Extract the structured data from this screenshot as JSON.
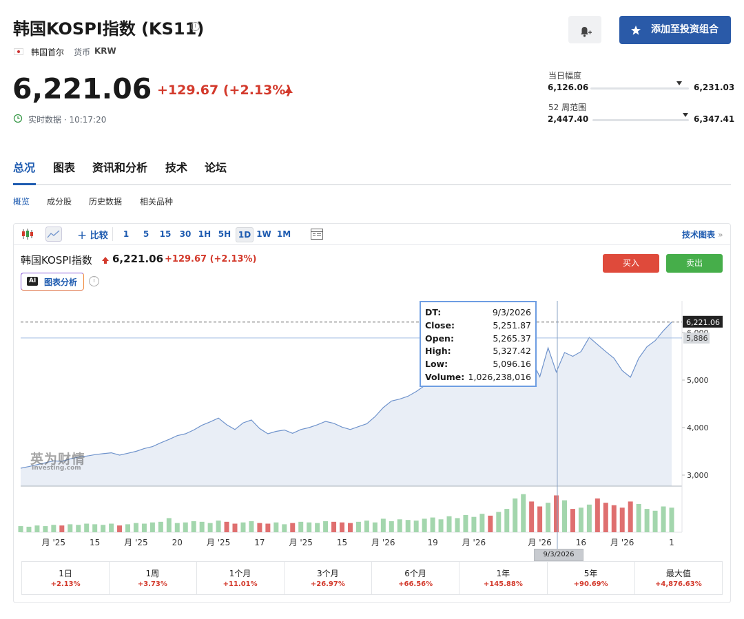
{
  "header": {
    "title": "韩国KOSPI指数 (KS11)",
    "location": "韩国首尔",
    "currency_label": "货币",
    "currency": "KRW",
    "price": {
      "value": 6221.06,
      "label": "6,221.06"
    },
    "change": "+129.67",
    "change_percent": "(+2.13%)",
    "status": "实时数据 · 10:17:20",
    "portfolio_button": "添加至投资组合"
  },
  "ranges": [
    {
      "title": "当日幅度",
      "low": {
        "value": 6126.06,
        "label": "6,126.06"
      },
      "high": {
        "value": 6231.03,
        "label": "6,231.03"
      }
    },
    {
      "title": "52 周范围",
      "low": {
        "value": 2447.4,
        "label": "2,447.40"
      },
      "high": {
        "value": 6347.41,
        "label": "6,347.41"
      }
    }
  ],
  "tabs": [
    "总况",
    "图表",
    "资讯和分析",
    "技术",
    "论坛"
  ],
  "subtabs": [
    "概览",
    "成分股",
    "历史数据",
    "相关品种"
  ],
  "toolbar": {
    "compare": "比较",
    "intervals": [
      "1",
      "5",
      "15",
      "30",
      "1H",
      "5H",
      "1D",
      "1W",
      "1M"
    ],
    "technical": "技术图表"
  },
  "panel": {
    "name": "韩国KOSPI指数",
    "price": "6,221.06",
    "change": "+129.67",
    "change_percent": "(+2.13%)",
    "buy": "买入",
    "sell": "卖出",
    "ai_badge": "AI",
    "ai_label": "图表分析",
    "watermark": "英为财情",
    "watermark_sub": "Investing.com"
  },
  "tooltip": {
    "rows": [
      {
        "label": "DT:",
        "value": "9/3/2026"
      },
      {
        "label": "Close:",
        "value": "5,251.87"
      },
      {
        "label": "Open:",
        "value": "5,265.37"
      },
      {
        "label": "High:",
        "value": "5,327.42"
      },
      {
        "label": "Low:",
        "value": "5,096.16"
      },
      {
        "label": "Volume:",
        "value": "1,026,238,016"
      }
    ],
    "crosshair_label": "9/3/2026"
  },
  "chart_data": {
    "type": "line",
    "color": "#6f93cc",
    "area_color": "#e9eef6",
    "up_color": "#a3d6ad",
    "down_color": "#df6f6f",
    "categories": [
      null,
      null,
      null,
      null,
      "月 '25",
      null,
      null,
      null,
      null,
      "15",
      null,
      null,
      null,
      null,
      "月 '25",
      null,
      null,
      null,
      null,
      "20",
      null,
      null,
      null,
      null,
      "月 '25",
      null,
      null,
      null,
      null,
      "17",
      null,
      null,
      null,
      null,
      "月 '25",
      null,
      null,
      null,
      null,
      "15",
      null,
      null,
      null,
      null,
      "月 '26",
      null,
      null,
      null,
      null,
      null,
      "19",
      null,
      null,
      null,
      null,
      "月 '26",
      null,
      null,
      null,
      null,
      null,
      null,
      null,
      "月 '26",
      null,
      null,
      null,
      null,
      "16",
      null,
      null,
      null,
      null,
      "月 '26",
      null,
      null,
      null,
      null,
      null,
      "1"
    ],
    "values": [
      3145,
      3180,
      3220,
      3260,
      3300,
      3290,
      3340,
      3380,
      3400,
      3430,
      3450,
      3470,
      3420,
      3460,
      3500,
      3560,
      3600,
      3680,
      3750,
      3830,
      3870,
      3950,
      4050,
      4120,
      4200,
      4060,
      3960,
      4100,
      4160,
      3980,
      3870,
      3920,
      3950,
      3880,
      3960,
      4000,
      4060,
      4130,
      4090,
      4010,
      3960,
      4020,
      4080,
      4230,
      4420,
      4560,
      4600,
      4660,
      4760,
      4880,
      4970,
      5050,
      5120,
      5180,
      5230,
      5280,
      5300,
      5260,
      5320,
      5380,
      5500,
      5700,
      5420,
      5070,
      5680,
      5170,
      5580,
      5500,
      5600,
      5900,
      5750,
      5600,
      5460,
      5200,
      5060,
      5460,
      5700,
      5830,
      6040,
      6221
    ],
    "volumes": [
      10,
      9,
      11,
      10,
      12,
      11,
      13,
      12,
      14,
      13,
      12,
      14,
      11,
      13,
      15,
      14,
      16,
      17,
      23,
      15,
      16,
      18,
      17,
      15,
      19,
      17,
      14,
      16,
      18,
      15,
      14,
      16,
      13,
      15,
      17,
      16,
      15,
      18,
      17,
      16,
      15,
      17,
      19,
      16,
      22,
      18,
      21,
      20,
      19,
      22,
      24,
      21,
      26,
      23,
      28,
      25,
      30,
      27,
      33,
      38,
      55,
      62,
      50,
      42,
      48,
      60,
      52,
      38,
      40,
      45,
      55,
      48,
      44,
      40,
      50,
      46,
      38,
      35,
      42,
      40
    ],
    "ylim": [
      2768,
      6667
    ],
    "yticks": [
      {
        "value": 3000,
        "label": "3,000"
      },
      {
        "value": 4000,
        "label": "4,000"
      },
      {
        "value": 5000,
        "label": "5,000"
      },
      {
        "value": 6000,
        "label": "6,000"
      }
    ],
    "volume_ylim": [
      0,
      65
    ],
    "last_price": {
      "value": 6221.06,
      "label": "6,221.06"
    },
    "reference_line": {
      "value": 5886,
      "label": "5,886"
    }
  },
  "performance": [
    {
      "period": "1日",
      "change": "+2.13%"
    },
    {
      "period": "1周",
      "change": "+3.73%"
    },
    {
      "period": "1个月",
      "change": "+11.01%"
    },
    {
      "period": "3个月",
      "change": "+26.97%"
    },
    {
      "period": "6个月",
      "change": "+66.56%"
    },
    {
      "period": "1年",
      "change": "+145.88%"
    },
    {
      "period": "5年",
      "change": "+90.69%"
    },
    {
      "period": "最大值",
      "change": "+4,876.63%"
    }
  ]
}
